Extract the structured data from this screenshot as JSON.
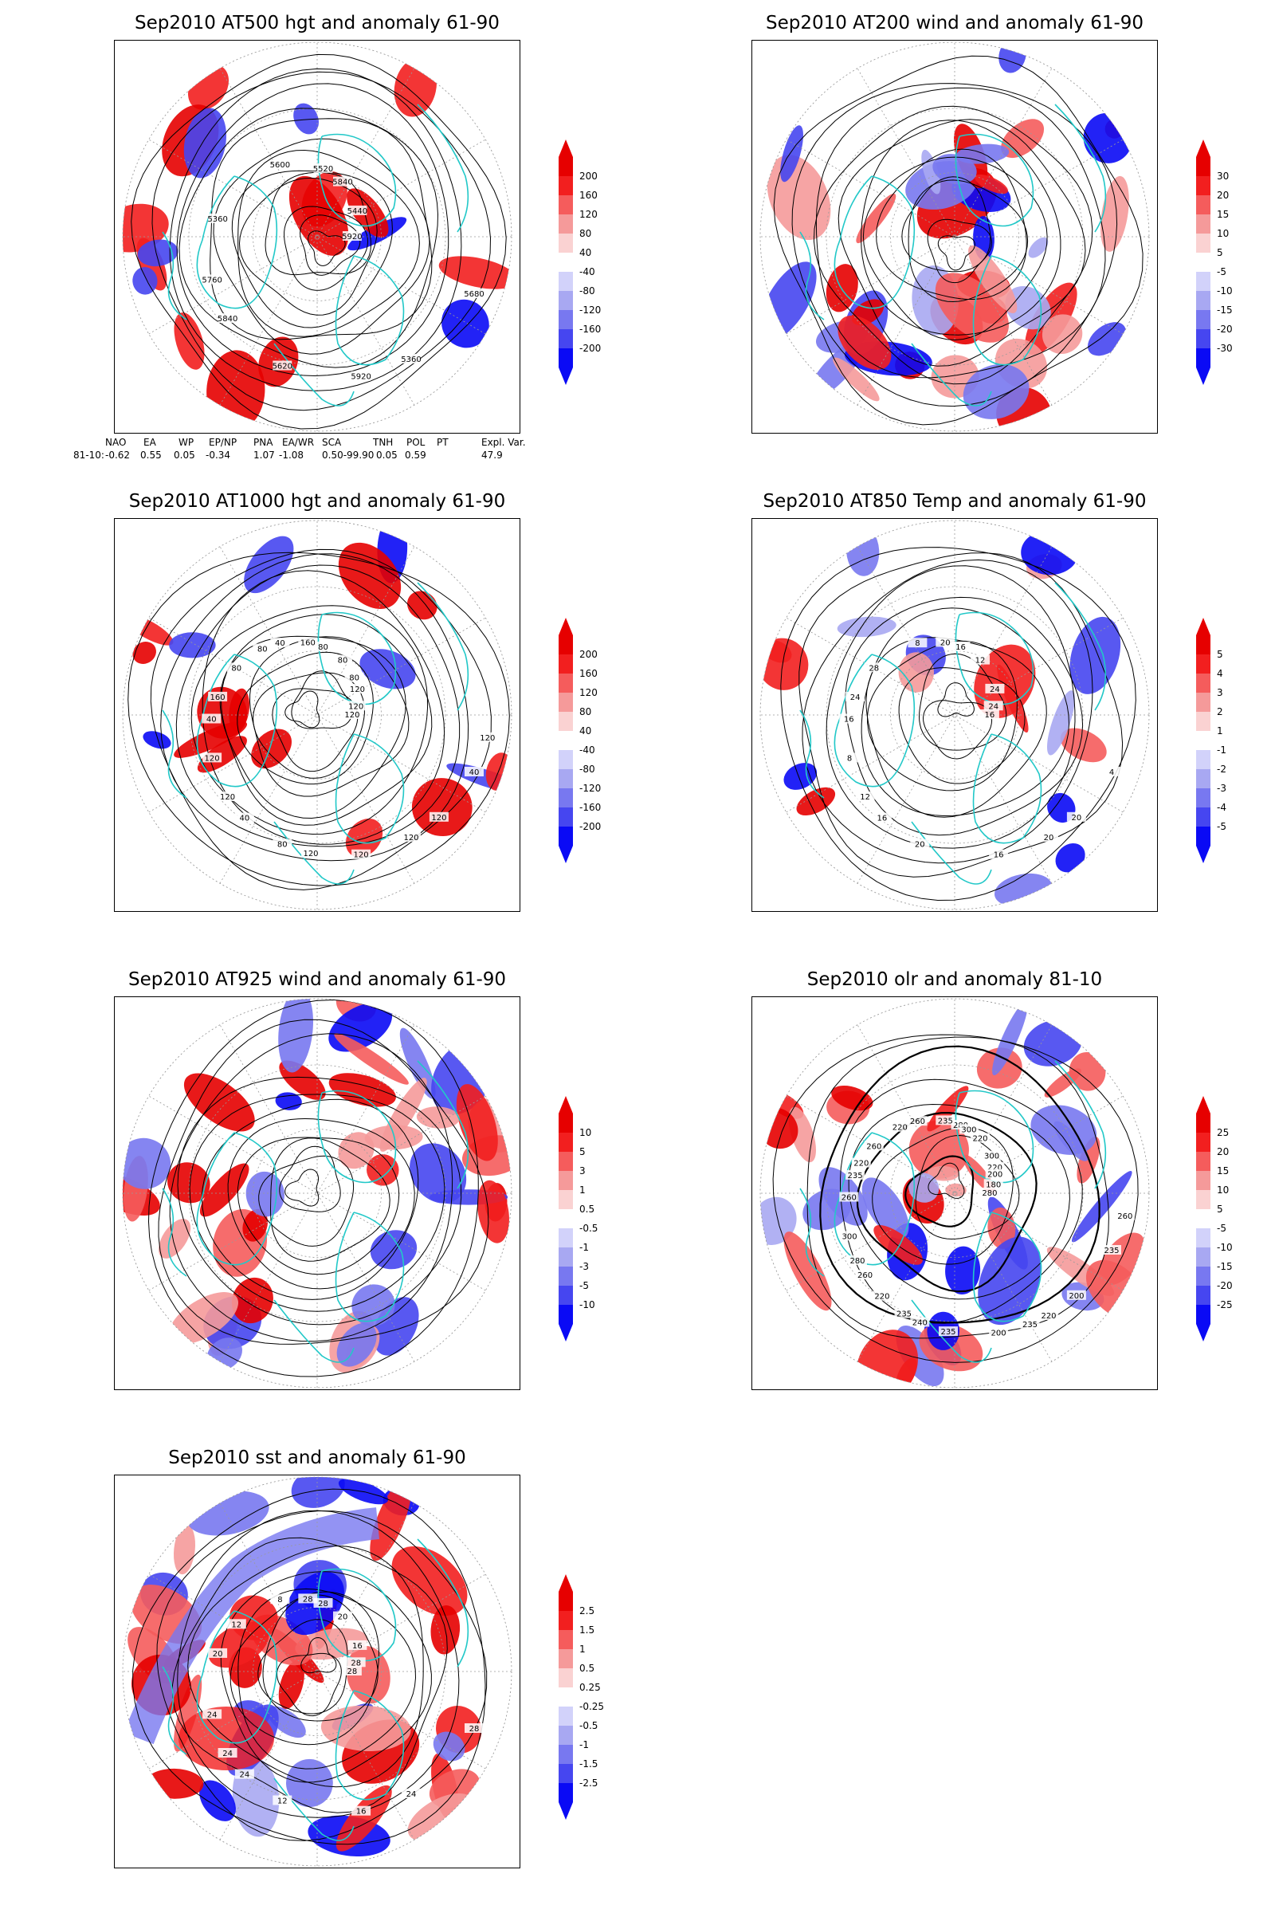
{
  "panels": [
    {
      "title": "Sep2010 AT500 hgt and anomaly 61-90",
      "field": "hgt",
      "colorbar": [
        "200",
        "160",
        "120",
        "80",
        "40",
        "-40",
        "-80",
        "-120",
        "-160",
        "-200"
      ],
      "contour_labels": [
        "5920",
        "5840",
        "5520",
        "5360",
        "5360",
        "5440",
        "5620",
        "5600",
        "5680",
        "5760",
        "5840",
        "5920"
      ]
    },
    {
      "title": "Sep2010 AT200 wind and anomaly 61-90",
      "field": "wind",
      "colorbar": [
        "30",
        "20",
        "15",
        "10",
        "5",
        "-5",
        "-10",
        "-15",
        "-20",
        "-30"
      ],
      "contour_labels": []
    },
    {
      "title": "Sep2010 AT1000 hgt and anomaly 61-90",
      "field": "hgt",
      "colorbar": [
        "200",
        "160",
        "120",
        "80",
        "40",
        "-40",
        "-80",
        "-120",
        "-160",
        "-200"
      ],
      "contour_labels": [
        "120",
        "120",
        "80",
        "120",
        "160",
        "120",
        "80",
        "40",
        "40",
        "120",
        "80",
        "120",
        "80",
        "120",
        "40",
        "160",
        "120",
        "40",
        "80",
        "120",
        "80",
        "120"
      ]
    },
    {
      "title": "Sep2010 AT850 Temp and anomaly 61-90",
      "field": "temp",
      "colorbar": [
        "5",
        "4",
        "3",
        "2",
        "1",
        "-1",
        "-2",
        "-3",
        "-4",
        "-5"
      ],
      "contour_labels": [
        "16",
        "12",
        "16",
        "20",
        "24",
        "24",
        "20",
        "8",
        "4",
        "8",
        "12",
        "16",
        "28",
        "24",
        "16",
        "20",
        "20",
        "16"
      ]
    },
    {
      "title": "Sep2010 AT925 wind and anomaly 61-90",
      "field": "wind",
      "colorbar": [
        "10",
        "5",
        "3",
        "1",
        "0.5",
        "-0.5",
        "-1",
        "-3",
        "-5",
        "-10"
      ],
      "contour_labels": []
    },
    {
      "title": "Sep2010 olr and anomaly 81-10",
      "field": "olr",
      "colorbar": [
        "25",
        "20",
        "15",
        "10",
        "5",
        "-5",
        "-10",
        "-15",
        "-20",
        "-25"
      ],
      "contour_labels": [
        "280",
        "260",
        "280",
        "220",
        "235",
        "220",
        "240",
        "260",
        "235",
        "300",
        "220",
        "200",
        "260",
        "180",
        "220",
        "235",
        "200",
        "260",
        "300",
        "235",
        "220",
        "260",
        "280",
        "300",
        "235",
        "220",
        "200",
        "235"
      ]
    },
    {
      "title": "Sep2010 sst and anomaly 61-90",
      "field": "sst",
      "colorbar": [
        "2.5",
        "1.5",
        "1",
        "0.5",
        "0.25",
        "-0.25",
        "-0.5",
        "-1",
        "-1.5",
        "-2.5"
      ],
      "contour_labels": [
        "28",
        "24",
        "28",
        "24",
        "20",
        "16",
        "12",
        "8",
        "28",
        "24",
        "20",
        "16",
        "12",
        "28",
        "24",
        "28"
      ]
    }
  ],
  "teleconnection": {
    "headers": [
      "NAO",
      "EA",
      "WP",
      "EP/NP",
      "PNA",
      "EA/WR",
      "SCA",
      "TNH",
      "POL",
      "PT",
      "Expl. Var."
    ],
    "row_label": "81-10:",
    "values": [
      "-0.62",
      "0.55",
      "0.05",
      "-0.34",
      "1.07",
      "-1.08",
      "0.50-99.90",
      "0.05",
      "0.59",
      "",
      "47.9"
    ]
  },
  "colors": {
    "positive": [
      "#e60000",
      "#f21f1f",
      "#f55c5c",
      "#f59a9a",
      "#fad2d2"
    ],
    "negative": [
      "#d2d2fa",
      "#a8a8f2",
      "#7878f0",
      "#4646f0",
      "#0a0af5"
    ],
    "coast": "#22c8c8",
    "contour": "#000000"
  }
}
